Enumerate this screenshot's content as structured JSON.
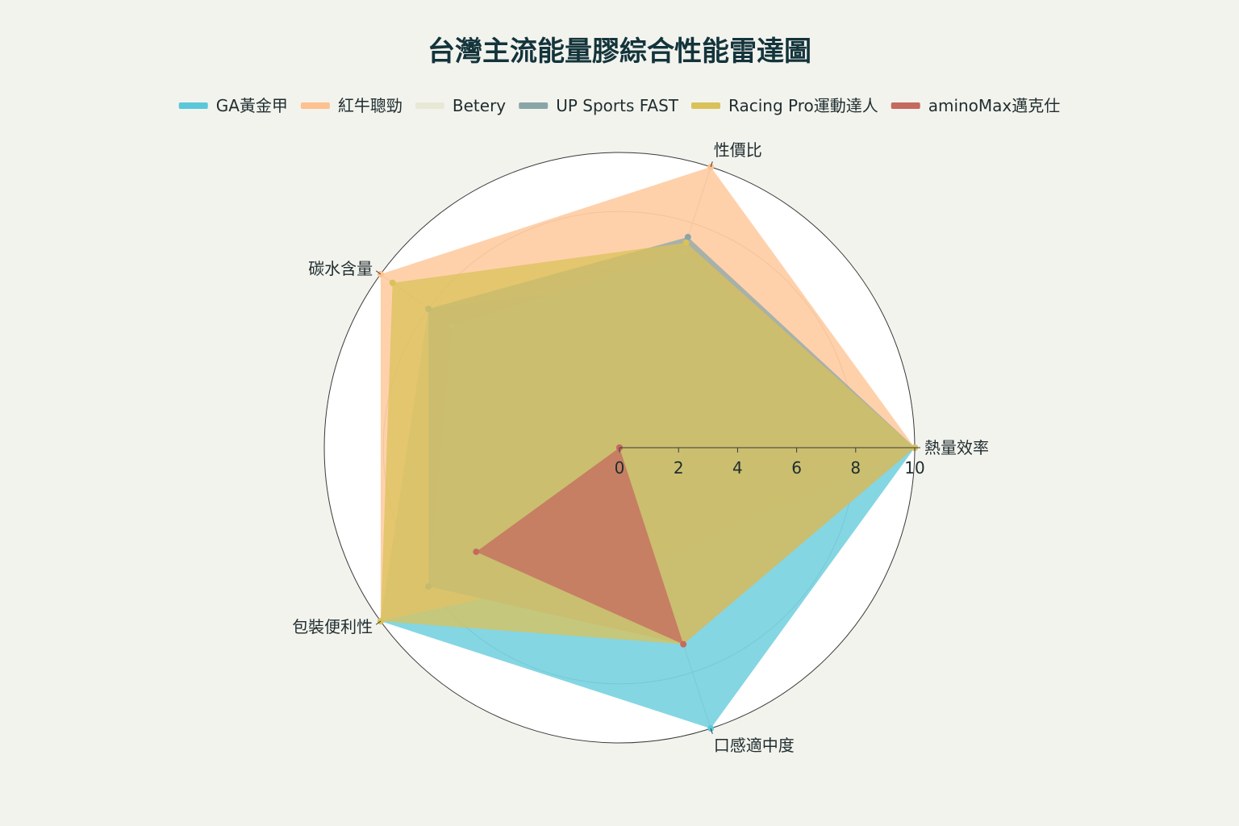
{
  "chart_data": {
    "type": "radar",
    "title": "台灣主流能量膠綜合性能雷達圖",
    "axes": [
      "熱量效率",
      "性價比",
      "碳水含量",
      "包裝便利性",
      "口感適中度"
    ],
    "range": [
      0,
      10
    ],
    "ticks": [
      "0",
      "2",
      "4",
      "6",
      "8",
      "10"
    ],
    "grid": true,
    "legend_position": "top",
    "series": [
      {
        "name": "GA黃金甲",
        "color": "#5bc8d9",
        "values": [
          10,
          6,
          8,
          10,
          10
        ]
      },
      {
        "name": "紅牛聰勁",
        "color": "#fdc28f",
        "values": [
          10,
          10,
          10,
          10,
          4
        ]
      },
      {
        "name": "Betery",
        "color": "#e8e8d6",
        "values": [
          10,
          7,
          7,
          8,
          7
        ]
      },
      {
        "name": "UP Sports FAST",
        "color": "#8aa5a8",
        "values": [
          10,
          7.5,
          8,
          8,
          7
        ]
      },
      {
        "name": "Racing Pro運動達人",
        "color": "#d9c25a",
        "values": [
          10,
          7.3,
          9.5,
          10,
          7
        ]
      },
      {
        "name": "aminoMax邁克仕",
        "color": "#c46a5f",
        "values": [
          0,
          0,
          0,
          6,
          7
        ]
      }
    ]
  }
}
